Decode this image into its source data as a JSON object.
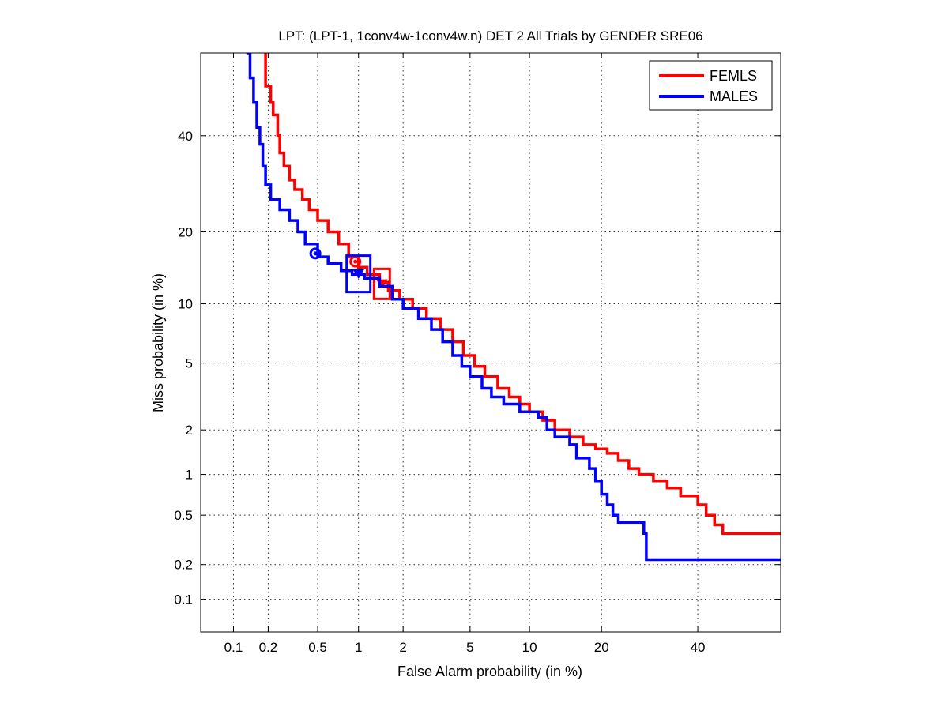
{
  "chart_data": {
    "type": "line",
    "title": "LPT: (LPT-1, 1conv4w-1conv4w.n) DET 2 All Trials by GENDER SRE06",
    "xlabel": "False Alarm probability (in %)",
    "ylabel": "Miss probability (in %)",
    "x_scale": "probit",
    "y_scale": "probit",
    "xlim": [
      0.05,
      60
    ],
    "ylim": [
      0.05,
      60
    ],
    "xticks": [
      0.1,
      0.2,
      0.5,
      1,
      2,
      5,
      10,
      20,
      40
    ],
    "xtick_labels": [
      "0.1",
      "0.2",
      "0.5",
      "1",
      "2",
      "5",
      "10",
      "20",
      "40"
    ],
    "yticks": [
      0.1,
      0.2,
      0.5,
      1,
      2,
      5,
      10,
      20,
      40
    ],
    "ytick_labels": [
      "0.1",
      "0.2",
      "0.5",
      "1",
      "2",
      "5",
      "10",
      "20",
      "40"
    ],
    "grid": true,
    "legend_position": "top-right",
    "series": [
      {
        "name": "FEMLS",
        "color": "#ff0000",
        "points": [
          [
            0.19,
            60
          ],
          [
            0.19,
            52
          ],
          [
            0.21,
            48
          ],
          [
            0.22,
            45
          ],
          [
            0.24,
            40
          ],
          [
            0.25,
            36
          ],
          [
            0.27,
            33
          ],
          [
            0.3,
            30
          ],
          [
            0.33,
            28
          ],
          [
            0.38,
            26
          ],
          [
            0.43,
            24
          ],
          [
            0.5,
            22
          ],
          [
            0.6,
            20
          ],
          [
            0.72,
            18
          ],
          [
            0.85,
            16
          ],
          [
            1.0,
            14.5
          ],
          [
            1.15,
            13.5
          ],
          [
            1.4,
            12.5
          ],
          [
            1.6,
            11.5
          ],
          [
            1.9,
            10.5
          ],
          [
            2.3,
            9.5
          ],
          [
            2.8,
            8.5
          ],
          [
            3.4,
            7.5
          ],
          [
            4.0,
            6.5
          ],
          [
            4.6,
            5.5
          ],
          [
            5.3,
            4.8
          ],
          [
            6.0,
            4.2
          ],
          [
            7.0,
            3.6
          ],
          [
            8.0,
            3.2
          ],
          [
            9.0,
            2.9
          ],
          [
            10.0,
            2.6
          ],
          [
            11.5,
            2.3
          ],
          [
            13.0,
            2.0
          ],
          [
            15.0,
            1.8
          ],
          [
            17.0,
            1.6
          ],
          [
            19.0,
            1.5
          ],
          [
            21.0,
            1.4
          ],
          [
            23.0,
            1.25
          ],
          [
            25.0,
            1.1
          ],
          [
            27.0,
            1.0
          ],
          [
            30.0,
            0.9
          ],
          [
            33.0,
            0.8
          ],
          [
            36.0,
            0.7
          ],
          [
            40.0,
            0.6
          ],
          [
            42.0,
            0.5
          ],
          [
            44.0,
            0.42
          ],
          [
            46.0,
            0.36
          ],
          [
            60.0,
            0.36
          ]
        ],
        "dcf_min": {
          "x": 0.95,
          "y": 15.3
        },
        "dcf_act": {
          "x": 1.45,
          "y": 12.3
        }
      },
      {
        "name": "MALES",
        "color": "#0000ff",
        "points": [
          [
            0.13,
            60
          ],
          [
            0.14,
            54
          ],
          [
            0.15,
            48
          ],
          [
            0.16,
            42
          ],
          [
            0.17,
            38
          ],
          [
            0.18,
            33
          ],
          [
            0.19,
            29
          ],
          [
            0.21,
            26
          ],
          [
            0.25,
            24
          ],
          [
            0.3,
            22
          ],
          [
            0.35,
            20
          ],
          [
            0.4,
            18
          ],
          [
            0.5,
            16
          ],
          [
            0.6,
            15
          ],
          [
            0.75,
            14
          ],
          [
            0.9,
            13.5
          ],
          [
            1.1,
            13
          ],
          [
            1.4,
            12
          ],
          [
            1.7,
            10.5
          ],
          [
            2.0,
            9.5
          ],
          [
            2.5,
            8.5
          ],
          [
            3.0,
            7.5
          ],
          [
            3.5,
            6.5
          ],
          [
            4.0,
            5.5
          ],
          [
            4.5,
            4.8
          ],
          [
            5.0,
            4.2
          ],
          [
            5.8,
            3.6
          ],
          [
            6.5,
            3.2
          ],
          [
            7.5,
            2.9
          ],
          [
            9.0,
            2.6
          ],
          [
            11.0,
            2.4
          ],
          [
            12.0,
            2.0
          ],
          [
            13.0,
            1.8
          ],
          [
            15.0,
            1.6
          ],
          [
            16.0,
            1.3
          ],
          [
            18.0,
            1.1
          ],
          [
            19.0,
            0.9
          ],
          [
            20.0,
            0.72
          ],
          [
            21.0,
            0.6
          ],
          [
            22.0,
            0.5
          ],
          [
            23.0,
            0.44
          ],
          [
            27.0,
            0.44
          ],
          [
            28.0,
            0.36
          ],
          [
            28.5,
            0.25
          ],
          [
            28.5,
            0.22
          ],
          [
            60.0,
            0.22
          ]
        ],
        "dcf_min": {
          "x": 0.48,
          "y": 16.5
        },
        "dcf_act": {
          "x": 1.0,
          "y": 13.6
        }
      }
    ]
  }
}
